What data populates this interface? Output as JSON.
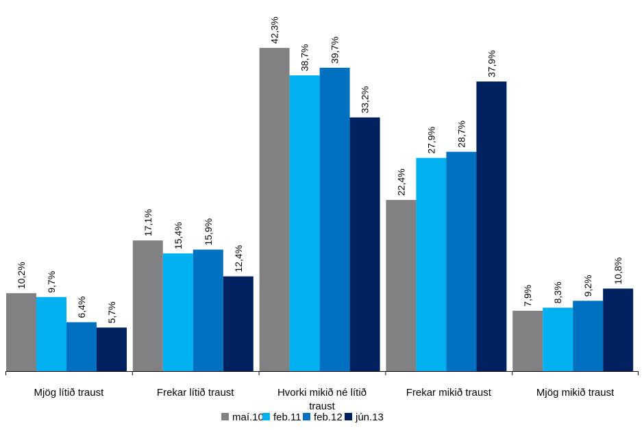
{
  "chart_data": {
    "type": "bar",
    "title": "",
    "xlabel": "",
    "ylabel": "",
    "ylim": [
      0,
      45
    ],
    "grid": false,
    "legend_position": "bottom",
    "categories": [
      [
        "Mjög lítið traust"
      ],
      [
        "Frekar lítið traust"
      ],
      [
        "Hvorki mikið né lítið",
        "traust"
      ],
      [
        "Frekar mikið traust"
      ],
      [
        "Mjög mikið traust"
      ]
    ],
    "series": [
      {
        "name": "maí.10",
        "color": "#818083",
        "values": [
          10.2,
          17.1,
          42.3,
          22.4,
          7.9
        ],
        "labels": [
          "10,2%",
          "17,1%",
          "42,3%",
          "22,4%",
          "7,9%"
        ]
      },
      {
        "name": "feb.11",
        "color": "#00b0f0",
        "values": [
          9.7,
          15.4,
          38.7,
          27.9,
          8.3
        ],
        "labels": [
          "9,7%",
          "15,4%",
          "38,7%",
          "27,9%",
          "8,3%"
        ]
      },
      {
        "name": "feb.12",
        "color": "#0070c0",
        "values": [
          6.4,
          15.9,
          39.7,
          28.7,
          9.2
        ],
        "labels": [
          "6,4%",
          "15,9%",
          "39,7%",
          "28,7%",
          "9,2%"
        ]
      },
      {
        "name": "jún.13",
        "color": "#002060",
        "values": [
          5.7,
          12.4,
          33.2,
          37.9,
          10.8
        ],
        "labels": [
          "5,7%",
          "12,4%",
          "33,2%",
          "37,9%",
          "10,8%"
        ]
      }
    ]
  }
}
